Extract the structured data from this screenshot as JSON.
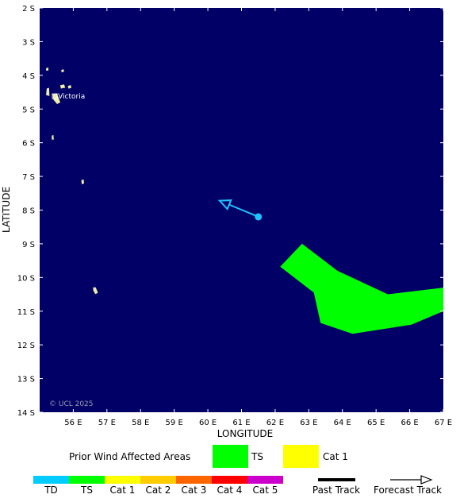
{
  "map": {
    "lon_range": [
      55,
      67
    ],
    "lat_range": [
      2,
      14
    ],
    "lat_hemisphere": "S",
    "background_color": "#000066",
    "land_color": "#eeeeaa",
    "x_axis_title": "LONGITUDE",
    "y_axis_title": "LATITUDE",
    "lon_ticks": [
      "56 E",
      "57 E",
      "58 E",
      "59 E",
      "60 E",
      "61 E",
      "62 E",
      "63 E",
      "64 E",
      "65 E",
      "66 E",
      "67 E"
    ],
    "lat_ticks": [
      "2 S",
      "3 S",
      "4 S",
      "5 S",
      "6 S",
      "7 S",
      "8 S",
      "9 S",
      "10 S",
      "11 S",
      "12 S",
      "13 S",
      "14 S"
    ],
    "copyright": "© UCL 2025",
    "place": {
      "name": "Victoria",
      "lon": 55.45,
      "lat": 4.62
    },
    "islands": [
      [
        [
          55.2,
          3.8
        ],
        [
          55.25,
          3.78
        ],
        [
          55.25,
          3.85
        ],
        [
          55.2,
          3.85
        ]
      ],
      [
        [
          55.65,
          3.85
        ],
        [
          55.7,
          3.83
        ],
        [
          55.72,
          3.88
        ],
        [
          55.66,
          3.9
        ]
      ],
      [
        [
          55.62,
          4.3
        ],
        [
          55.72,
          4.28
        ],
        [
          55.75,
          4.36
        ],
        [
          55.64,
          4.38
        ]
      ],
      [
        [
          55.85,
          4.32
        ],
        [
          55.92,
          4.3
        ],
        [
          55.93,
          4.37
        ],
        [
          55.86,
          4.38
        ]
      ],
      [
        [
          55.22,
          4.4
        ],
        [
          55.27,
          4.38
        ],
        [
          55.28,
          4.6
        ],
        [
          55.2,
          4.58
        ]
      ],
      [
        [
          55.4,
          4.58
        ],
        [
          55.5,
          4.55
        ],
        [
          55.56,
          4.68
        ],
        [
          55.6,
          4.8
        ],
        [
          55.52,
          4.84
        ],
        [
          55.42,
          4.72
        ]
      ],
      [
        [
          55.37,
          5.8
        ],
        [
          55.4,
          5.78
        ],
        [
          55.41,
          5.9
        ],
        [
          55.37,
          5.9
        ]
      ],
      [
        [
          56.25,
          7.12
        ],
        [
          56.3,
          7.1
        ],
        [
          56.31,
          7.2
        ],
        [
          56.26,
          7.22
        ]
      ],
      [
        [
          56.6,
          10.3
        ],
        [
          56.66,
          10.3
        ],
        [
          56.72,
          10.45
        ],
        [
          56.66,
          10.48
        ],
        [
          56.6,
          10.38
        ]
      ]
    ]
  },
  "storm": {
    "track_color": "#1ec2ff",
    "current": {
      "lon": 61.5,
      "lat": 8.2
    },
    "forecast_end": {
      "lon": 60.35,
      "lat": 7.72
    }
  },
  "affected_areas": [
    {
      "category": "TS",
      "color": "#00ff00",
      "polygon": [
        [
          62.15,
          9.68
        ],
        [
          62.8,
          9.0
        ],
        [
          63.85,
          9.8
        ],
        [
          65.35,
          10.5
        ],
        [
          67.0,
          10.3
        ],
        [
          67.0,
          11.0
        ],
        [
          66.05,
          11.4
        ],
        [
          64.3,
          11.67
        ],
        [
          63.35,
          11.35
        ],
        [
          63.15,
          10.45
        ]
      ]
    }
  ],
  "legend": {
    "prior_title": "Prior Wind Affected Areas",
    "prior_items": [
      {
        "label": "TS",
        "color": "#00ff00"
      },
      {
        "label": "Cat 1",
        "color": "#ffff00"
      }
    ],
    "scale": [
      {
        "label": "TD",
        "color": "#00ccff"
      },
      {
        "label": "TS",
        "color": "#00ff00"
      },
      {
        "label": "Cat 1",
        "color": "#ffff00"
      },
      {
        "label": "Cat 2",
        "color": "#ffcc00"
      },
      {
        "label": "Cat 3",
        "color": "#ff6600"
      },
      {
        "label": "Cat 4",
        "color": "#ff0000"
      },
      {
        "label": "Cat 5",
        "color": "#cc00cc"
      }
    ],
    "past_track_label": "Past Track",
    "forecast_track_label": "Forecast Track"
  }
}
